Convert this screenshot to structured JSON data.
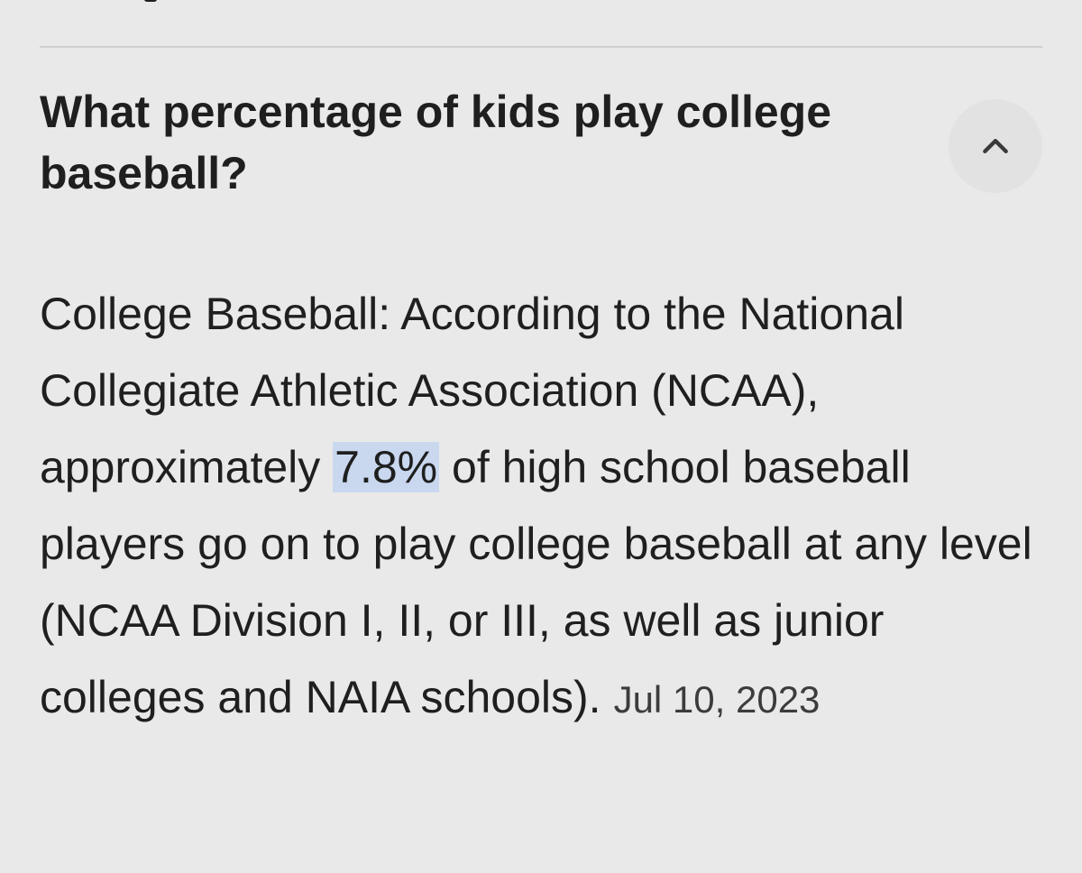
{
  "faq": {
    "question": "What percentage of kids play college baseball?",
    "answer_before": "College Baseball: According to the National Collegiate Athletic Association (NCAA), approximately ",
    "answer_highlight": "7.8%",
    "answer_after": " of high school baseball players go on to play college baseball at any level (NCAA Division I, II, or III, as well as junior colleges and NAIA schools).",
    "date": "Jul 10, 2023",
    "toggle_icon": "chevron-up-icon",
    "expanded": true
  },
  "colors": {
    "background": "#e9e9e9",
    "text": "#1f1f1f",
    "highlight": "#c9d8ef",
    "toggle_background": "#e2e2e2"
  }
}
